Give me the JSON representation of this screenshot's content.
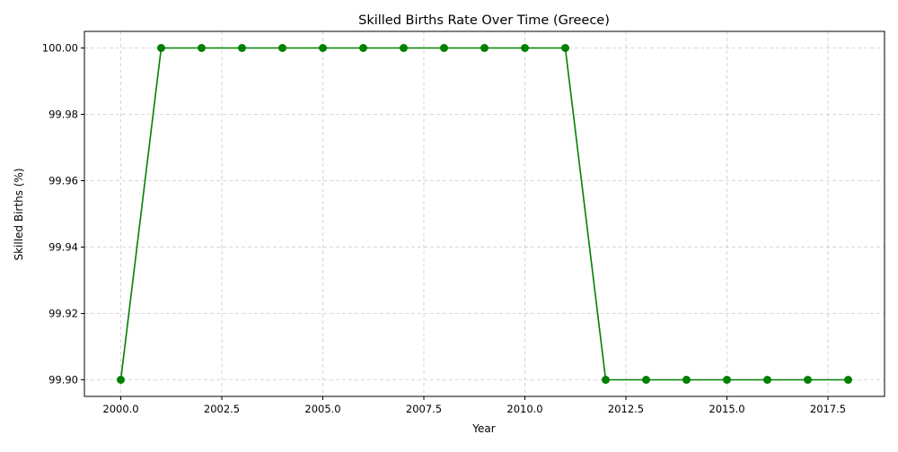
{
  "chart_data": {
    "type": "line",
    "title": "Skilled Births Rate Over Time (Greece)",
    "xlabel": "Year",
    "ylabel": "Skilled Births (%)",
    "x": [
      2000,
      2001,
      2002,
      2003,
      2004,
      2005,
      2006,
      2007,
      2008,
      2009,
      2010,
      2011,
      2012,
      2013,
      2014,
      2015,
      2016,
      2017,
      2018
    ],
    "series": [
      {
        "values": [
          99.9,
          100.0,
          100.0,
          100.0,
          100.0,
          100.0,
          100.0,
          100.0,
          100.0,
          100.0,
          100.0,
          100.0,
          99.9,
          99.9,
          99.9,
          99.9,
          99.9,
          99.9,
          99.9
        ],
        "color": "#008000",
        "marker": "circle"
      }
    ],
    "xlim": [
      1999.1,
      2018.9
    ],
    "ylim": [
      99.895,
      100.005
    ],
    "xticks": [
      2000.0,
      2002.5,
      2005.0,
      2007.5,
      2010.0,
      2012.5,
      2015.0,
      2017.5
    ],
    "xtick_labels": [
      "2000.0",
      "2002.5",
      "2005.0",
      "2007.5",
      "2010.0",
      "2012.5",
      "2015.0",
      "2017.5"
    ],
    "yticks": [
      99.9,
      99.92,
      99.94,
      99.96,
      99.98,
      100.0
    ],
    "ytick_labels": [
      "99.90",
      "99.92",
      "99.94",
      "99.96",
      "99.98",
      "100.00"
    ],
    "grid": true,
    "grid_color": "#cccccc"
  }
}
